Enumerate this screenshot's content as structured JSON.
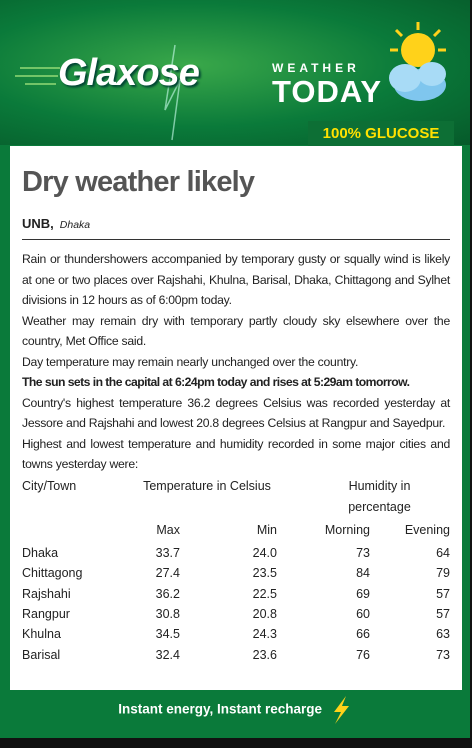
{
  "header": {
    "brand": "Glaxose",
    "weather": "WEATHER",
    "today": "TODAY",
    "tagline": "100% GLUCOSE"
  },
  "article": {
    "title": "Dry weather likely",
    "source": "UNB,",
    "location": "Dhaka",
    "paragraphs": [
      "Rain or thundershowers accompanied by temporary gusty or squally wind is likely at one or two places over Rajshahi, Khulna, Barisal, Dhaka, Chittagong and Sylhet divisions in 12 hours as of 6:00pm today.",
      "Weather may remain dry with temporary partly cloudy sky elsewhere over the country, Met Office said.",
      "Day temperature may remain nearly unchanged over the country.",
      "The sun sets in the capital at 6:24pm today and rises at 5:29am tomorrow.",
      "Country's highest temperature 36.2 degrees Celsius was recorded yesterday at Jessore and Rajshahi and lowest 20.8 degrees Celsius at Rangpur and Sayedpur.",
      "Highest and lowest temperature and humidity recorded in some major cities and towns yesterday were:"
    ]
  },
  "table": {
    "columns": [
      "City/Town",
      "Temperature in Celsius",
      "Humidity in percentage"
    ],
    "subcolumns": [
      "Max",
      "Min",
      "Morning",
      "Evening"
    ],
    "rows": [
      [
        "Dhaka",
        "33.7",
        "24.0",
        "73",
        "64"
      ],
      [
        "Chittagong",
        "27.4",
        "23.5",
        "84",
        "79"
      ],
      [
        "Rajshahi",
        "36.2",
        "22.5",
        "69",
        "57"
      ],
      [
        "Rangpur",
        "30.8",
        "20.8",
        "60",
        "57"
      ],
      [
        "Khulna",
        "34.5",
        "24.3",
        "66",
        "63"
      ],
      [
        "Barisal",
        "32.4",
        "23.6",
        "76",
        "73"
      ]
    ]
  },
  "footer": {
    "slogan": "Instant energy, Instant recharge"
  }
}
